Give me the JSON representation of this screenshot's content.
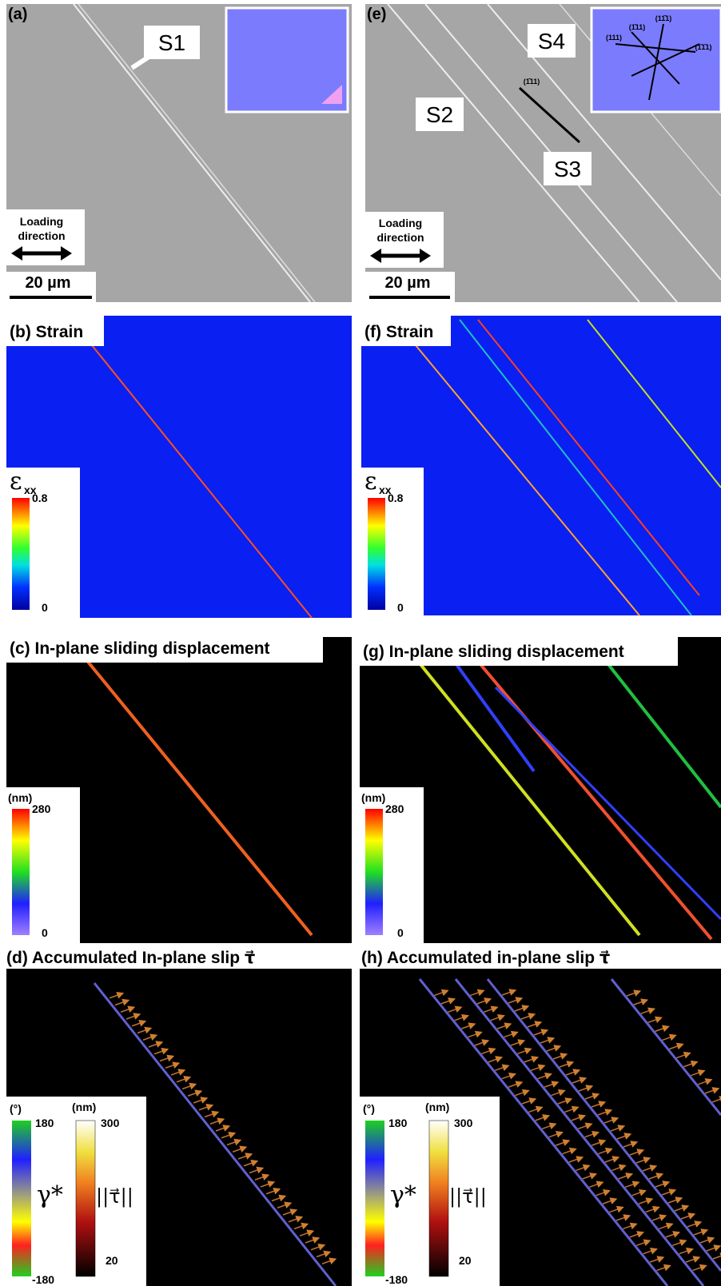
{
  "panel_a": {
    "label": "(a)",
    "callout": "S1",
    "loading_direction": [
      "Loading",
      "direction"
    ],
    "scale_bar": "20 µm"
  },
  "panel_e": {
    "label": "(e)",
    "callouts": [
      "S4",
      "S2",
      "S3"
    ],
    "planes": [
      "(1̄11)",
      "(111)",
      "(1̄11)",
      "(11̄1)",
      "(1̄1̄1)"
    ],
    "loading_direction": [
      "Loading",
      "direction"
    ],
    "scale_bar": "20 µm"
  },
  "panel_b": {
    "title": "(b) Strain",
    "symbol": "ε",
    "subscript": "xx",
    "max": "0.8",
    "min": "0"
  },
  "panel_f": {
    "title": "(f) Strain",
    "symbol": "ε",
    "subscript": "xx",
    "max": "0.8",
    "min": "0"
  },
  "panel_c": {
    "title": "(c) In-plane sliding displacement",
    "unit": "(nm)",
    "max": "280",
    "min": "0"
  },
  "panel_g": {
    "title": "(g) In-plane sliding displacement",
    "unit": "(nm)",
    "max": "280",
    "min": "0"
  },
  "panel_d": {
    "title": "(d) Accumulated In-plane slip τ⃗",
    "angle_unit": "(°)",
    "angle_max": "180",
    "angle_min": "-180",
    "angle_symbol": "γ*",
    "mag_unit": "(nm)",
    "mag_max": "300",
    "mag_min": "20",
    "mag_symbol": "||τ⃗||"
  },
  "panel_h": {
    "title": "(h) Accumulated in-plane slip τ⃗",
    "angle_unit": "(°)",
    "angle_max": "180",
    "angle_min": "-180",
    "angle_symbol": "γ*",
    "mag_unit": "(nm)",
    "mag_max": "300",
    "mag_min": "20",
    "mag_symbol": "||τ⃗||"
  }
}
